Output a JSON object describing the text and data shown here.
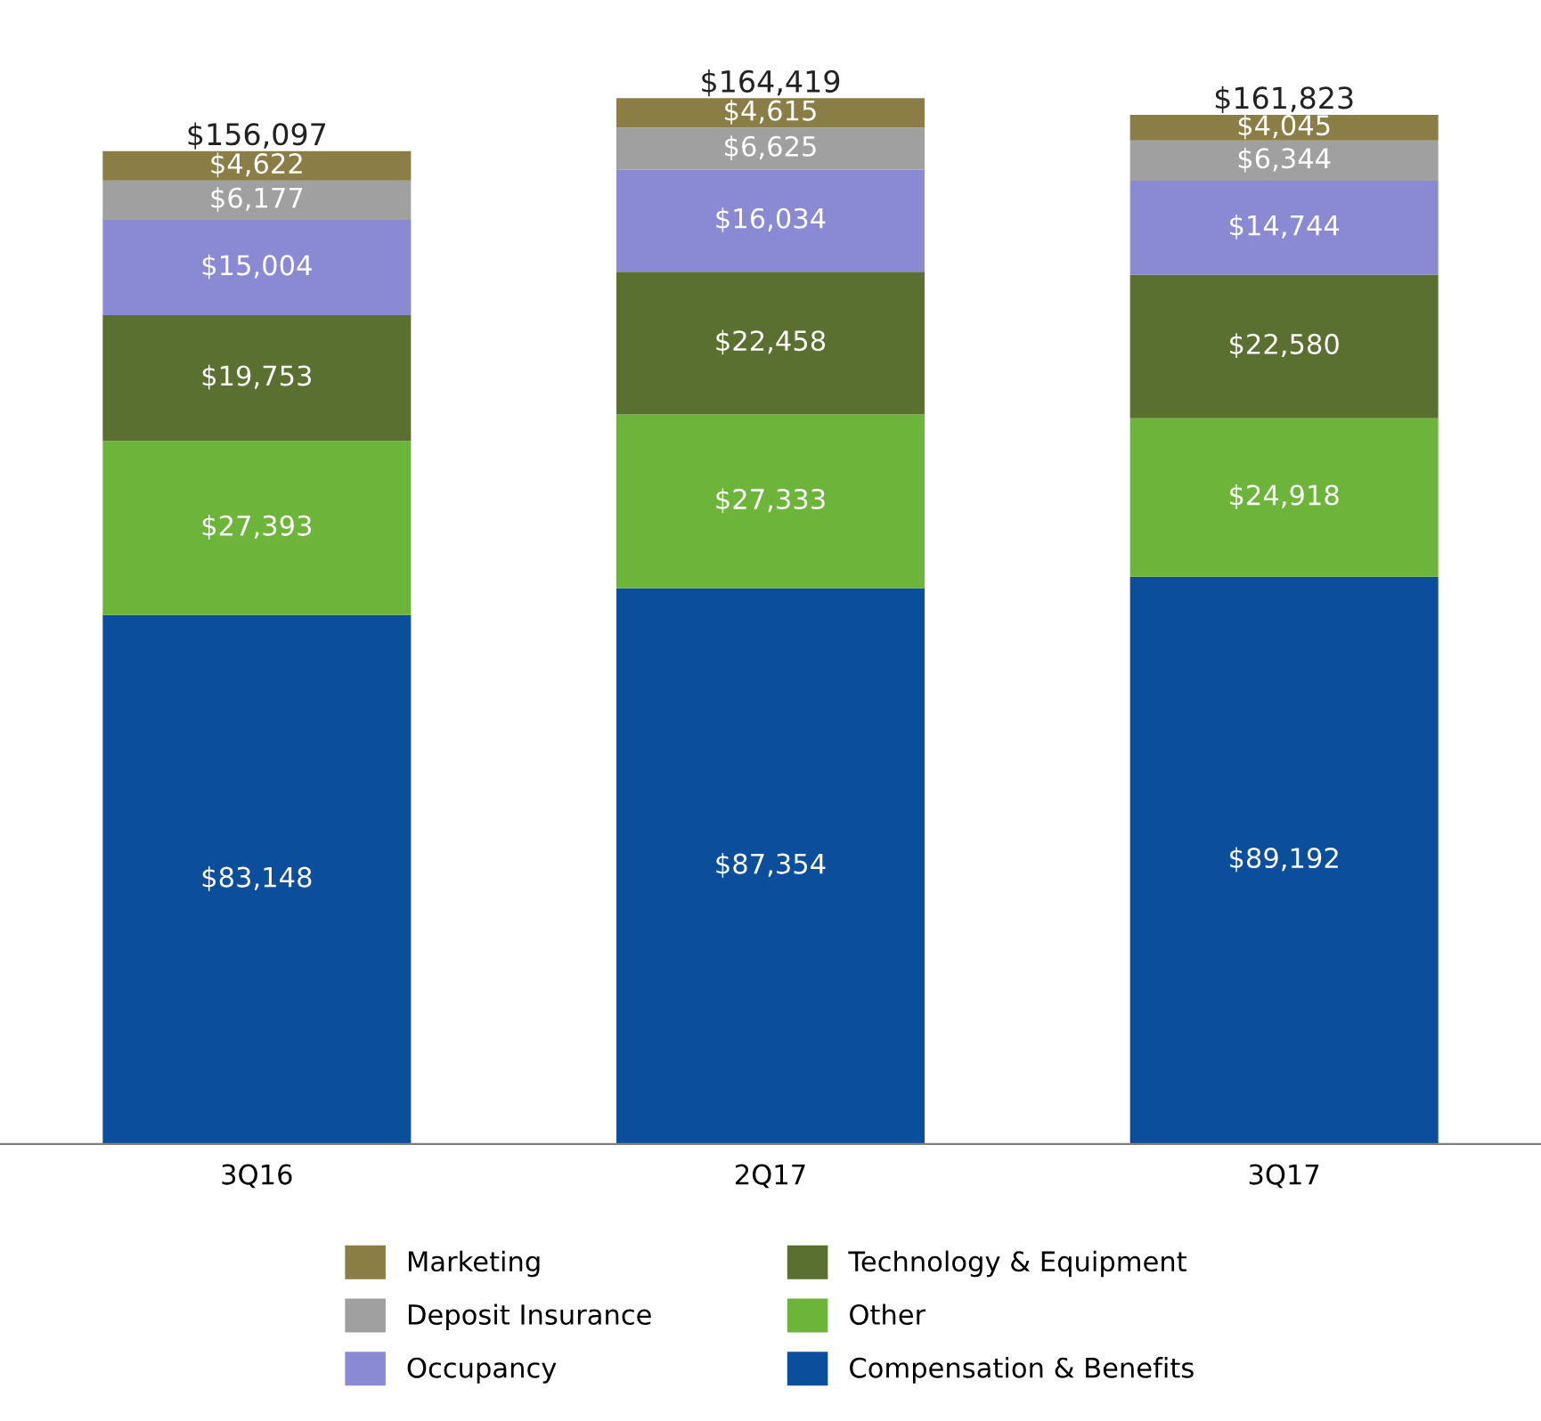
{
  "chart_data": {
    "type": "bar",
    "stacked": true,
    "legend": "bottom",
    "grid": false,
    "categories": [
      "3Q16",
      "2Q17",
      "3Q17"
    ],
    "series": [
      {
        "name": "Compensation & Benefits",
        "color": "#0b4f9c",
        "values": [
          83148,
          87354,
          89192
        ],
        "value_labels": [
          "$83,148",
          "$87,354",
          "$89,192"
        ]
      },
      {
        "name": "Other",
        "color": "#6cb43a",
        "values": [
          27393,
          27333,
          24918
        ],
        "value_labels": [
          "$27,393",
          "$27,333",
          "$24,918"
        ]
      },
      {
        "name": "Technology & Equipment",
        "color": "#5a7030",
        "values": [
          19753,
          22458,
          22580
        ],
        "value_labels": [
          "$19,753",
          "$22,458",
          "$22,580"
        ]
      },
      {
        "name": "Occupancy",
        "color": "#8a8ad4",
        "values": [
          15004,
          16034,
          14744
        ],
        "value_labels": [
          "$15,004",
          "$16,034",
          "$14,744"
        ]
      },
      {
        "name": "Deposit Insurance",
        "color": "#a0a0a0",
        "values": [
          6177,
          6625,
          6344
        ],
        "value_labels": [
          "$6,177",
          "$6,625",
          "$6,344"
        ]
      },
      {
        "name": "Marketing",
        "color": "#8a7d45",
        "values": [
          4622,
          4615,
          4045
        ],
        "value_labels": [
          "$4,622",
          "$4,615",
          "$4,045"
        ]
      }
    ],
    "totals": [
      "$156,097",
      "$164,419",
      "$161,823"
    ]
  }
}
